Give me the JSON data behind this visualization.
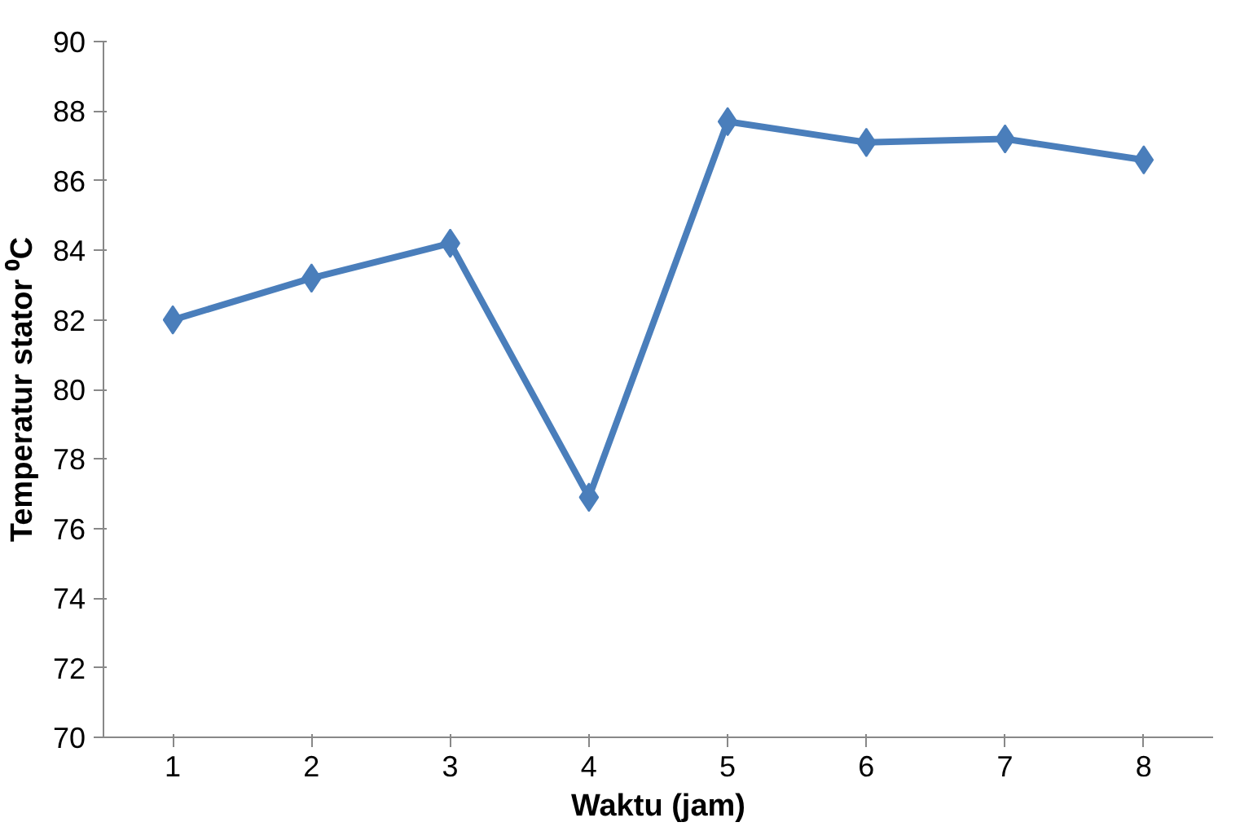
{
  "chart_data": {
    "type": "line",
    "xlabel": "Waktu (jam)",
    "ylabel": "Temperatur stator ⁰C",
    "categories": [
      "1",
      "2",
      "3",
      "4",
      "5",
      "6",
      "7",
      "8"
    ],
    "series": [
      {
        "color": "#4a7ebb",
        "values": [
          82.0,
          83.2,
          84.2,
          76.9,
          87.7,
          87.1,
          87.2,
          86.6
        ]
      }
    ],
    "ylim": [
      70,
      90
    ],
    "yticks": [
      70,
      72,
      74,
      76,
      78,
      80,
      82,
      84,
      86,
      88,
      90
    ],
    "marker": "diamond",
    "line_style": "solid"
  }
}
